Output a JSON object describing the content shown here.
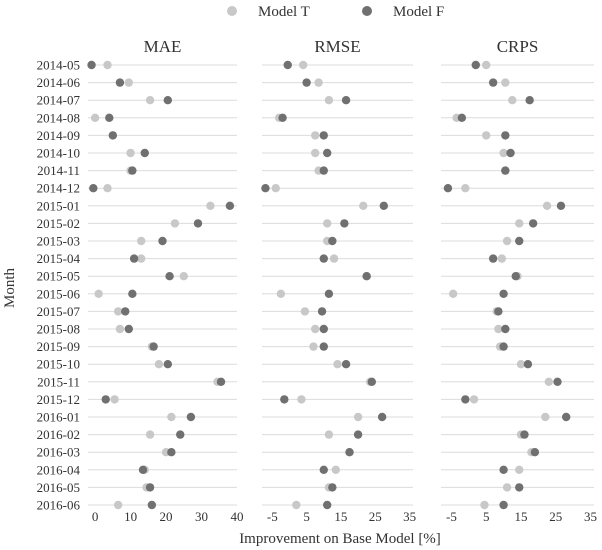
{
  "chart_data": {
    "type": "scatter",
    "ylabel": "Month",
    "xlabel": "Improvement on Base Model [%]",
    "legend": {
      "placement": "top-center",
      "entries": [
        {
          "name": "Model T",
          "color": "#c8c8c8"
        },
        {
          "name": "Model F",
          "color": "#707070"
        }
      ]
    },
    "grid": "horizontal",
    "months": [
      "2014-05",
      "2014-06",
      "2014-07",
      "2014-08",
      "2014-09",
      "2014-10",
      "2014-11",
      "2014-12",
      "2015-01",
      "2015-02",
      "2015-03",
      "2015-04",
      "2015-05",
      "2015-06",
      "2015-07",
      "2015-08",
      "2015-09",
      "2015-10",
      "2015-11",
      "2015-12",
      "2016-01",
      "2016-02",
      "2016-03",
      "2016-04",
      "2016-05",
      "2016-06"
    ],
    "panels": [
      {
        "title": "MAE",
        "xlim": [
          -2,
          40
        ],
        "ticks": [
          0,
          10,
          20,
          30,
          40
        ],
        "series": [
          {
            "name": "Model T",
            "values": [
              3.5,
              9.5,
              15.5,
              0.0,
              5.0,
              10.0,
              10.0,
              3.5,
              32.5,
              22.5,
              13.0,
              13.0,
              25.0,
              1.0,
              6.5,
              7.0,
              16.0,
              18.0,
              34.5,
              5.5,
              21.5,
              15.5,
              20.0,
              14.0,
              14.5,
              6.5
            ]
          },
          {
            "name": "Model F",
            "values": [
              -1.0,
              7.0,
              20.5,
              4.0,
              5.0,
              14.0,
              10.5,
              -0.5,
              38.0,
              29.0,
              19.0,
              11.0,
              21.0,
              10.5,
              8.5,
              9.5,
              16.5,
              20.5,
              35.5,
              3.0,
              27.0,
              24.0,
              21.5,
              13.5,
              15.5,
              16.0
            ]
          }
        ]
      },
      {
        "title": "RMSE",
        "xlim": [
          -8,
          36
        ],
        "ticks": [
          -5,
          5,
          15,
          25,
          35
        ],
        "series": [
          {
            "name": "Model T",
            "values": [
              4.0,
              8.5,
              11.5,
              -3.0,
              7.5,
              7.5,
              8.5,
              -4.0,
              21.5,
              11.0,
              11.0,
              13.0,
              22.5,
              -2.5,
              4.5,
              7.5,
              7.0,
              14.0,
              23.5,
              3.5,
              20.0,
              11.5,
              17.5,
              13.5,
              11.5,
              2.0
            ]
          },
          {
            "name": "Model F",
            "values": [
              -0.5,
              5.0,
              16.5,
              -2.0,
              10.0,
              11.0,
              10.0,
              -7.0,
              27.5,
              16.0,
              12.5,
              10.0,
              22.5,
              11.5,
              9.5,
              10.0,
              10.0,
              16.5,
              24.0,
              -1.5,
              27.0,
              20.0,
              17.5,
              10.0,
              12.5,
              11.0
            ]
          }
        ]
      },
      {
        "title": "CRPS",
        "xlim": [
          -8,
          36
        ],
        "ticks": [
          -5,
          5,
          15,
          25,
          35
        ],
        "series": [
          {
            "name": "Model T",
            "values": [
              5.0,
              10.5,
              12.5,
              -3.5,
              5.0,
              10.0,
              10.5,
              -1.0,
              22.5,
              14.5,
              11.0,
              9.5,
              14.0,
              -4.5,
              8.0,
              8.5,
              9.0,
              15.0,
              23.0,
              1.5,
              22.0,
              15.0,
              18.0,
              14.5,
              11.0,
              4.5
            ]
          },
          {
            "name": "Model F",
            "values": [
              2.0,
              7.0,
              17.5,
              -2.0,
              10.5,
              12.0,
              10.5,
              -6.0,
              26.5,
              18.5,
              14.5,
              7.0,
              13.5,
              10.0,
              8.5,
              10.5,
              10.0,
              17.0,
              25.5,
              -1.0,
              28.0,
              16.0,
              19.0,
              10.0,
              14.5,
              10.0
            ]
          }
        ]
      }
    ]
  }
}
